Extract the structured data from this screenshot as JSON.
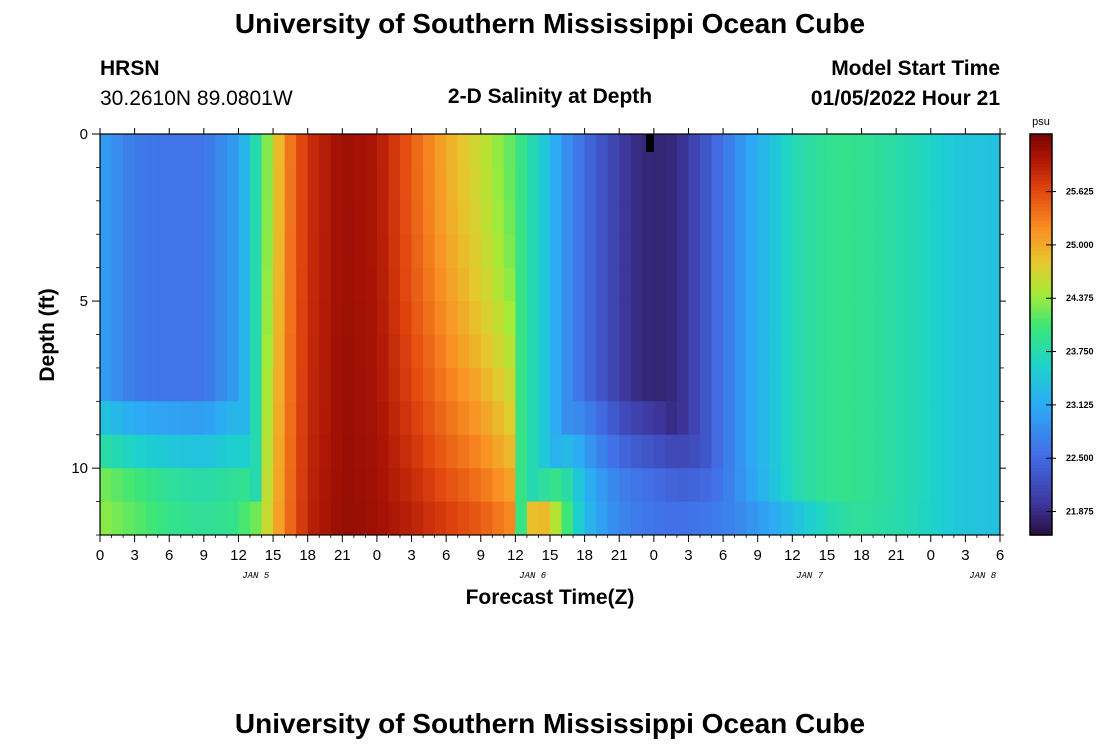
{
  "page": {
    "title": "University of Southern Mississippi Ocean Cube",
    "footer_title": "University of Southern Mississippi Ocean Cube",
    "station": "HRSN",
    "coords": "30.2610N  89.0801W",
    "plot_title": "2-D Salinity at Depth",
    "start_label": "Model Start Time",
    "start_value": "01/05/2022 Hour 21"
  },
  "chart_data": {
    "type": "heatmap",
    "title": "2-D Salinity at Depth",
    "xlabel": "Forecast Time(Z)",
    "ylabel": "Depth (ft)",
    "x_tick_labels": [
      "0",
      "3",
      "6",
      "9",
      "12",
      "15",
      "18",
      "21",
      "0",
      "3",
      "6",
      "9",
      "12",
      "15",
      "18",
      "21",
      "0",
      "3",
      "6",
      "9",
      "12",
      "15",
      "18",
      "21",
      "0",
      "3",
      "6"
    ],
    "date_labels": [
      "JAN 5",
      "JAN 6",
      "JAN 7",
      "JAN 8"
    ],
    "date_label_hours": [
      13.5,
      37.5,
      61.5,
      76.5
    ],
    "x_range_hours": [
      0,
      78
    ],
    "y_ticks": [
      0,
      5,
      10
    ],
    "y_tick_labels": [
      "0",
      "5",
      "10"
    ],
    "ylim": [
      0,
      12
    ],
    "n_depth_layers": 12,
    "colorbar": {
      "unit": "psu",
      "range": [
        21.6,
        26.3
      ],
      "tick_values": [
        25.625,
        25.0,
        24.375,
        23.75,
        23.125,
        22.5,
        21.875
      ],
      "tick_labels": [
        "25.625",
        "25.000",
        "24.375",
        "23.750",
        "23.125",
        "22.500",
        "21.875"
      ]
    },
    "salinity_keyframes": {
      "hours": [
        0,
        3,
        6,
        9,
        12,
        14,
        16,
        18,
        21,
        24,
        27,
        30,
        33,
        36,
        38,
        40,
        42,
        44,
        46,
        48,
        50,
        52,
        54,
        56,
        58,
        60,
        62,
        64,
        66,
        70,
        74,
        78
      ],
      "surface": [
        23.0,
        22.65,
        22.6,
        22.6,
        23.0,
        24.0,
        25.2,
        25.8,
        26.1,
        26.0,
        25.5,
        25.0,
        24.6,
        24.1,
        23.6,
        22.95,
        22.5,
        22.2,
        21.9,
        21.8,
        21.85,
        22.2,
        22.6,
        23.0,
        23.35,
        23.7,
        23.85,
        23.95,
        23.9,
        23.75,
        23.45,
        23.35
      ],
      "bottom": [
        24.35,
        24.15,
        23.95,
        23.85,
        23.95,
        24.5,
        25.3,
        25.9,
        26.15,
        26.1,
        26.0,
        25.85,
        25.7,
        25.4,
        25.1,
        24.3,
        23.3,
        22.9,
        22.7,
        22.6,
        22.55,
        22.6,
        22.7,
        22.85,
        23.05,
        23.3,
        23.55,
        23.75,
        23.85,
        23.7,
        23.4,
        23.3
      ]
    },
    "profile_note": "surface values hold down to the mixed-layer depth and blend toward the bottom values below it",
    "mixed_layer_depth_ft": {
      "hours": [
        0,
        12,
        14,
        36,
        42,
        48,
        54,
        78
      ],
      "values": [
        7.5,
        7.5,
        12,
        12,
        7.5,
        7.8,
        10,
        12
      ]
    }
  }
}
